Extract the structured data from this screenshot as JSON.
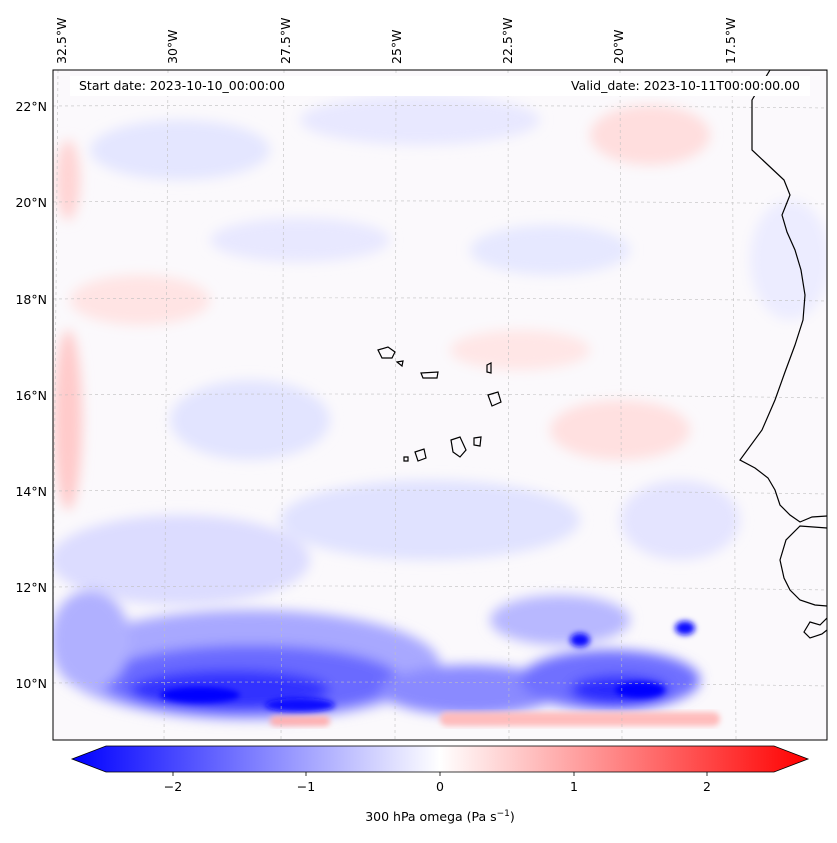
{
  "map": {
    "start_label": "Start date: 2023-10-10_00:00:00",
    "valid_label": "Valid_date: 2023-10-11T00:00:00.00",
    "lon_labels": [
      "32.5°W",
      "30°W",
      "27.5°W",
      "25°W",
      "22.5°W",
      "20°W",
      "17.5°W"
    ],
    "lat_labels": [
      "22°N",
      "20°N",
      "18°N",
      "16°N",
      "14°N",
      "12°N",
      "10°N"
    ],
    "variable": "omega",
    "level": "300 hPa",
    "units": "Pa s⁻¹"
  },
  "colorbar": {
    "ticks": [
      "−2",
      "−1",
      "0",
      "1",
      "2"
    ],
    "tick_values": [
      -2,
      -1,
      0,
      1,
      2
    ],
    "min": -2.5,
    "max": 2.5,
    "label": "300 hPa omega (Pa s",
    "label_sup": "−1",
    "label_end": ")",
    "colormap": "bwr",
    "color_min": "#0000ff",
    "color_mid": "#ffffff",
    "color_max": "#ff0000"
  }
}
